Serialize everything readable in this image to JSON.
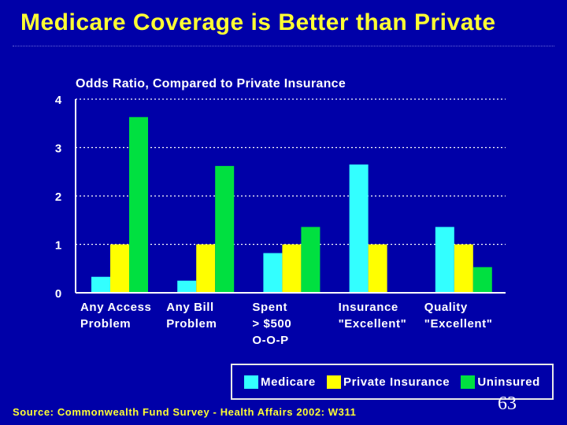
{
  "title": "Medicare Coverage is Better than Private",
  "source": "Source: Commonwealth Fund Survey - Health Affairs 2002: W311",
  "page_number": "63",
  "colors": {
    "background": "#0000a8",
    "title": "#ffff33",
    "medicare": "#33ffff",
    "private": "#ffff00",
    "uninsured": "#00e040"
  },
  "chart_data": {
    "type": "bar",
    "title": "Odds Ratio, Compared to Private Insurance",
    "xlabel": "",
    "ylabel": "",
    "ylim": [
      0,
      4
    ],
    "yticks": [
      0,
      1,
      2,
      3,
      4
    ],
    "grid": "horizontal-dotted",
    "legend": "bottom-right",
    "categories": [
      [
        "Any Access",
        "Problem"
      ],
      [
        "Any Bill",
        "Problem"
      ],
      [
        "Spent",
        "> $500",
        "O-O-P"
      ],
      [
        "Insurance",
        "\"Excellent\""
      ],
      [
        "Quality",
        "\"Excellent\""
      ]
    ],
    "series": [
      {
        "name": "Medicare",
        "color": "#33ffff",
        "values": [
          0.33,
          0.25,
          0.82,
          2.65,
          1.36
        ]
      },
      {
        "name": "Private Insurance",
        "color": "#ffff00",
        "values": [
          1.0,
          1.0,
          1.0,
          1.0,
          1.0
        ]
      },
      {
        "name": "Uninsured",
        "color": "#00e040",
        "values": [
          3.63,
          2.62,
          1.36,
          null,
          0.53
        ]
      }
    ]
  }
}
